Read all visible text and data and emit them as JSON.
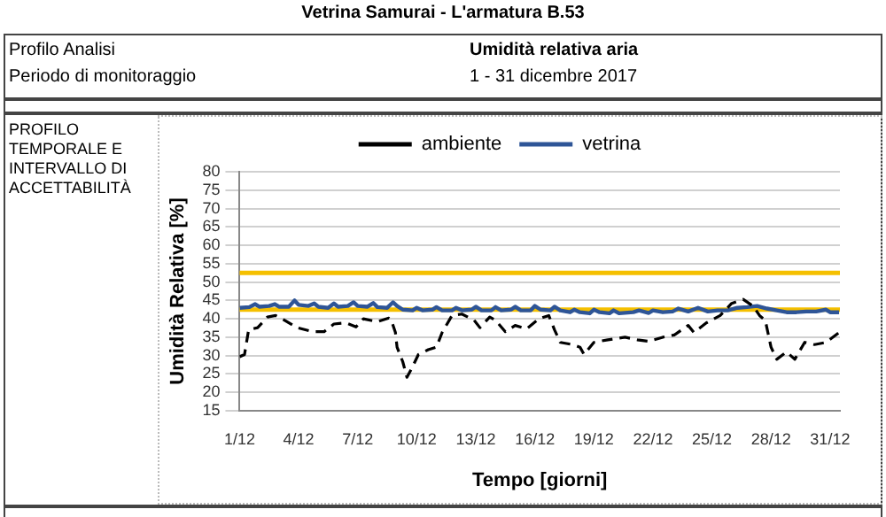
{
  "chart_data": {
    "type": "line",
    "title": "Vetrina Samurai - L'armatura B.53",
    "annotations": [
      "Profilo Analisi",
      "Umidità relativa aria",
      "Periodo di monitoraggio",
      "1 - 31 dicembre 2017",
      "PROFILO TEMPORALE E INTERVALLO DI ACCETTABILITÀ"
    ],
    "xlabel": "Tempo [giorni]",
    "ylabel": "Umidità Relativa [%]",
    "xlim": [
      "2017-12-01",
      "2017-12-31T12:00"
    ],
    "xticks": [
      {
        "value": "2017-12-01",
        "label": "1/12"
      },
      {
        "value": "2017-12-04",
        "label": "4/12"
      },
      {
        "value": "2017-12-07",
        "label": "7/12"
      },
      {
        "value": "2017-12-10",
        "label": "10/12"
      },
      {
        "value": "2017-12-13",
        "label": "13/12"
      },
      {
        "value": "2017-12-16",
        "label": "16/12"
      },
      {
        "value": "2017-12-19",
        "label": "19/12"
      },
      {
        "value": "2017-12-22",
        "label": "22/12"
      },
      {
        "value": "2017-12-25",
        "label": "25/12"
      },
      {
        "value": "2017-12-28",
        "label": "28/12"
      },
      {
        "value": "2017-12-31",
        "label": "31/12"
      }
    ],
    "ylim": [
      15,
      80
    ],
    "yticks": [
      15,
      20,
      25,
      30,
      35,
      40,
      45,
      50,
      55,
      60,
      65,
      70,
      75,
      80
    ],
    "grid": "y",
    "legend": "top",
    "marker": "none",
    "ref_lines": [
      {
        "axis": "y",
        "value": 52.5,
        "color": "#f5c000"
      },
      {
        "axis": "y",
        "value": 42.5,
        "color": "#f5c000"
      }
    ],
    "series": [
      {
        "name": "ambiente",
        "color": "#000000",
        "line_style": "dashed",
        "x": [
          "2017-12-01T00:00",
          "2017-12-01T06:00",
          "2017-12-01T11:00",
          "2017-12-01T22:00",
          "2017-12-02T10:00",
          "2017-12-02T20:00",
          "2017-12-03T07:00",
          "2017-12-03T22:00",
          "2017-12-04T17:00",
          "2017-12-05T07:00",
          "2017-12-05T19:00",
          "2017-12-06T10:00",
          "2017-12-06T22:00",
          "2017-12-07T07:00",
          "2017-12-08T00:00",
          "2017-12-08T14:00",
          "2017-12-08T17:00",
          "2017-12-08T22:00",
          "2017-12-09T00:00",
          "2017-12-09T07:00",
          "2017-12-09T12:00",
          "2017-12-09T19:00",
          "2017-12-10T02:00",
          "2017-12-10T14:00",
          "2017-12-11T00:00",
          "2017-12-11T07:00",
          "2017-12-11T19:00",
          "2017-12-12T07:00",
          "2017-12-12T22:00",
          "2017-12-13T05:00",
          "2017-12-13T17:00",
          "2017-12-14T00:00",
          "2017-12-14T12:00",
          "2017-12-15T00:00",
          "2017-12-15T14:00",
          "2017-12-16T05:00",
          "2017-12-16T17:00",
          "2017-12-17T00:00",
          "2017-12-17T07:00",
          "2017-12-17T22:00",
          "2017-12-18T07:00",
          "2017-12-18T12:00",
          "2017-12-19T00:00",
          "2017-12-19T17:00",
          "2017-12-20T14:00",
          "2017-12-21T05:00",
          "2017-12-21T19:00",
          "2017-12-22T12:00",
          "2017-12-23T02:00",
          "2017-12-23T19:00",
          "2017-12-24T02:00",
          "2017-12-24T17:00",
          "2017-12-25T10:00",
          "2017-12-26T00:00",
          "2017-12-26T14:00",
          "2017-12-27T02:00",
          "2017-12-27T10:00",
          "2017-12-27T17:00",
          "2017-12-28T00:00",
          "2017-12-28T07:00",
          "2017-12-28T19:00",
          "2017-12-29T05:00",
          "2017-12-29T17:00",
          "2017-12-30T05:00",
          "2017-12-30T19:00",
          "2017-12-31T11:00"
        ],
        "values": [
          29.7,
          30.3,
          37,
          37.6,
          40.5,
          40.9,
          39.6,
          37.6,
          36.5,
          36.5,
          38.6,
          38.9,
          37.8,
          40,
          39.2,
          40.2,
          39.6,
          36.3,
          32.3,
          28.3,
          24.1,
          27,
          30.3,
          31.6,
          32.3,
          36.3,
          40.9,
          41.3,
          39.6,
          37.6,
          40.5,
          39.6,
          36.5,
          38.2,
          37.3,
          40,
          40.9,
          37,
          33.6,
          33,
          32.3,
          30.3,
          33.6,
          34.3,
          35,
          34.3,
          33.9,
          35,
          35.6,
          38.2,
          36.3,
          38.9,
          40.9,
          44.2,
          45.3,
          43.5,
          40.9,
          39.6,
          32.3,
          29,
          31,
          29,
          33.6,
          33,
          33.6,
          36.3
        ]
      },
      {
        "name": "vetrina",
        "color": "#2e5597",
        "line_style": "solid",
        "x": [
          "2017-12-01T00:00",
          "2017-12-01T12:00",
          "2017-12-01T19:00",
          "2017-12-02T00:00",
          "2017-12-02T12:00",
          "2017-12-02T19:00",
          "2017-12-03T00:00",
          "2017-12-03T12:00",
          "2017-12-03T19:00",
          "2017-12-04T00:00",
          "2017-12-04T12:00",
          "2017-12-04T19:00",
          "2017-12-05T00:00",
          "2017-12-05T12:00",
          "2017-12-05T19:00",
          "2017-12-06T00:00",
          "2017-12-06T12:00",
          "2017-12-06T19:00",
          "2017-12-07T00:00",
          "2017-12-07T12:00",
          "2017-12-07T19:00",
          "2017-12-08T00:00",
          "2017-12-08T12:00",
          "2017-12-08T19:00",
          "2017-12-09T00:00",
          "2017-12-09T07:00",
          "2017-12-09T19:00",
          "2017-12-10T00:00",
          "2017-12-10T07:00",
          "2017-12-10T19:00",
          "2017-12-11T00:00",
          "2017-12-11T07:00",
          "2017-12-11T19:00",
          "2017-12-12T00:00",
          "2017-12-12T07:00",
          "2017-12-12T19:00",
          "2017-12-13T00:00",
          "2017-12-13T07:00",
          "2017-12-13T19:00",
          "2017-12-14T00:00",
          "2017-12-14T07:00",
          "2017-12-14T19:00",
          "2017-12-15T00:00",
          "2017-12-15T07:00",
          "2017-12-15T19:00",
          "2017-12-16T00:00",
          "2017-12-16T07:00",
          "2017-12-16T19:00",
          "2017-12-17T00:00",
          "2017-12-17T07:00",
          "2017-12-17T19:00",
          "2017-12-18T00:00",
          "2017-12-18T07:00",
          "2017-12-18T19:00",
          "2017-12-19T00:00",
          "2017-12-19T07:00",
          "2017-12-19T19:00",
          "2017-12-20T00:00",
          "2017-12-20T07:00",
          "2017-12-21T00:00",
          "2017-12-21T07:00",
          "2017-12-21T19:00",
          "2017-12-22T00:00",
          "2017-12-22T12:00",
          "2017-12-23T00:00",
          "2017-12-23T07:00",
          "2017-12-23T19:00",
          "2017-12-24T07:00",
          "2017-12-24T19:00",
          "2017-12-25T07:00",
          "2017-12-25T19:00",
          "2017-12-26T07:00",
          "2017-12-26T19:00",
          "2017-12-27T07:00",
          "2017-12-27T19:00",
          "2017-12-28T07:00",
          "2017-12-28T19:00",
          "2017-12-29T07:00",
          "2017-12-29T19:00",
          "2017-12-30T07:00",
          "2017-12-30T19:00",
          "2017-12-31T00:00",
          "2017-12-31T11:00"
        ],
        "values": [
          43,
          43.2,
          44,
          43.3,
          43.5,
          44,
          43.3,
          43.3,
          45,
          43.8,
          43.5,
          44.2,
          43.3,
          43,
          44.2,
          43.3,
          43.5,
          44.5,
          43.5,
          43.3,
          44.3,
          43.2,
          43,
          44.5,
          43.5,
          42.5,
          42.3,
          43,
          42.3,
          42.5,
          43.2,
          42.3,
          42.3,
          43,
          42.3,
          42.5,
          43.3,
          42.3,
          42.3,
          43.2,
          42.3,
          42.5,
          43.3,
          42.3,
          42.3,
          43.5,
          42.5,
          42.3,
          43.3,
          42.3,
          41.8,
          42.5,
          41.8,
          41.5,
          42.5,
          41.8,
          41.5,
          42.3,
          41.5,
          41.8,
          42.3,
          41.6,
          42.3,
          41.8,
          42,
          42.8,
          42,
          43,
          42,
          42.3,
          42.3,
          43,
          43.2,
          43.5,
          42.8,
          42.3,
          41.8,
          41.8,
          42,
          42,
          42.5,
          41.8,
          41.8
        ]
      }
    ]
  }
}
